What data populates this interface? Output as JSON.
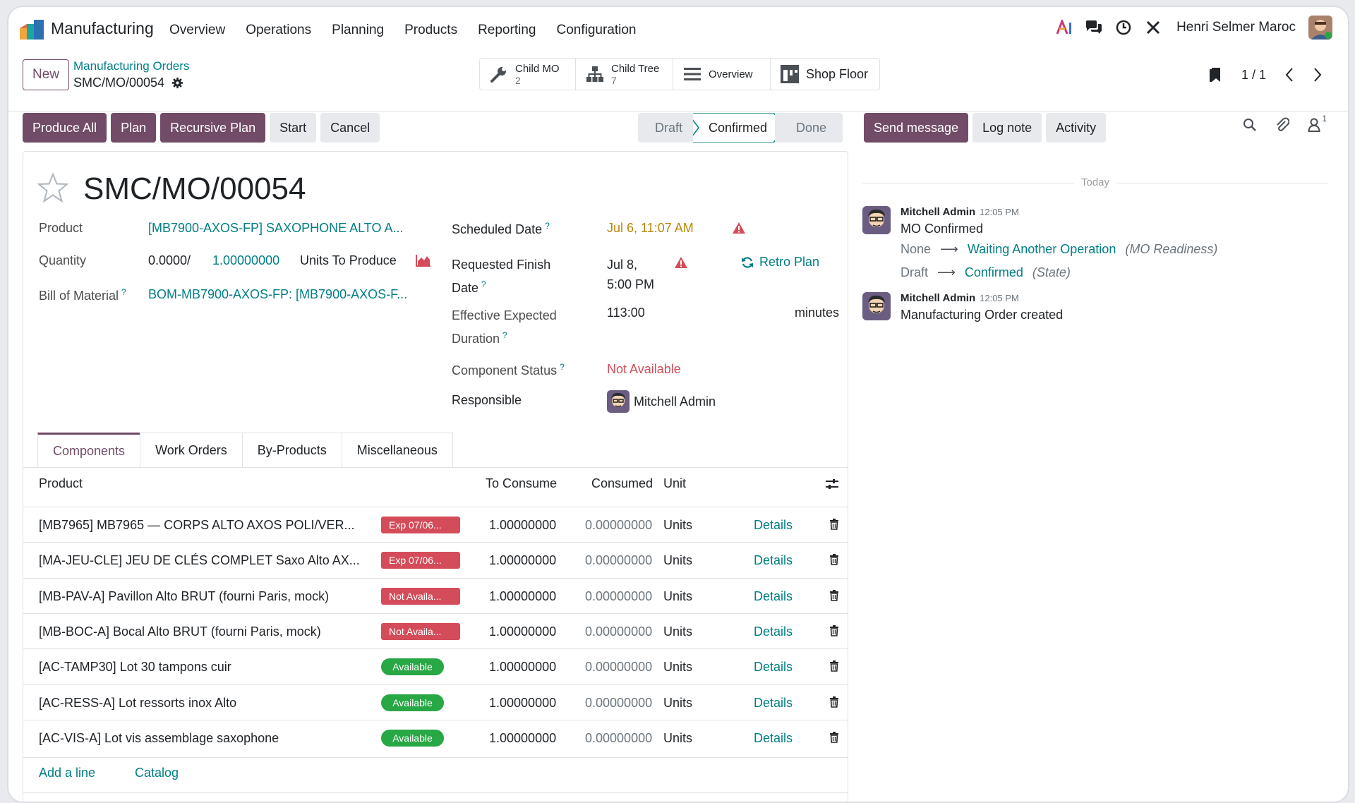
{
  "app": {
    "name": "Manufacturing"
  },
  "menu": [
    "Overview",
    "Operations",
    "Planning",
    "Products",
    "Reporting",
    "Configuration"
  ],
  "user": {
    "name": "Henri Selmer Maroc"
  },
  "breadcrumb": {
    "new_label": "New",
    "parent": "Manufacturing Orders",
    "current": "SMC/MO/00054"
  },
  "smart_buttons": {
    "child_mo": {
      "label": "Child MO",
      "count": "2"
    },
    "child_tree": {
      "label": "Child Tree",
      "count": "7"
    },
    "overview": {
      "label": "Overview"
    },
    "shop_floor": {
      "label": "Shop Floor"
    }
  },
  "pager": {
    "value": "1 / 1"
  },
  "actions": {
    "produce_all": "Produce All",
    "plan": "Plan",
    "recursive_plan": "Recursive Plan",
    "start": "Start",
    "cancel": "Cancel"
  },
  "statusbar": {
    "draft": "Draft",
    "confirmed": "Confirmed",
    "done": "Done",
    "active": "Confirmed"
  },
  "chatter_actions": {
    "send_message": "Send message",
    "log_note": "Log note",
    "activity": "Activity",
    "followers": "1"
  },
  "record": {
    "title": "SMC/MO/00054",
    "product_label": "Product",
    "product": "[MB7900-AXOS-FP] SAXOPHONE ALTO A...",
    "quantity_label": "Quantity",
    "qty_done": "0.0000/",
    "qty_total": "1.00000000",
    "qty_unit": "Units To Produce",
    "bom_label": "Bill of Material",
    "bom": "BOM-MB7900-AXOS-FP: [MB7900-AXOS-F...",
    "scheduled_label": "Scheduled Date",
    "scheduled": "Jul 6, 11:07 AM",
    "finish_label_1": "Requested Finish",
    "finish_label_2": "Date",
    "finish_1": "Jul 8,",
    "finish_2": "5:00 PM",
    "retro_plan": "Retro Plan",
    "duration_label_1": "Effective Expected",
    "duration_label_2": "Duration",
    "duration": "113:00",
    "duration_unit": "minutes",
    "component_status_label": "Component Status",
    "component_status": "Not Available",
    "responsible_label": "Responsible",
    "responsible": "Mitchell Admin",
    "help_mark": "?"
  },
  "tabs": [
    "Components",
    "Work Orders",
    "By-Products",
    "Miscellaneous"
  ],
  "table": {
    "headers": {
      "product": "Product",
      "to_consume": "To Consume",
      "consumed": "Consumed",
      "unit": "Unit"
    },
    "rows": [
      {
        "product": "[MB7965] MB7965 — CORPS ALTO AXOS POLI/VER...",
        "badge": "Exp 07/06...",
        "badge_color": "#d44c59",
        "to_consume": "1.00000000",
        "consumed": "0.00000000",
        "unit": "Units",
        "details": "Details"
      },
      {
        "product": "[MA-JEU-CLE] JEU DE CLÉS COMPLET Saxo Alto AX...",
        "badge": "Exp 07/06...",
        "badge_color": "#d44c59",
        "to_consume": "1.00000000",
        "consumed": "0.00000000",
        "unit": "Units",
        "details": "Details"
      },
      {
        "product": "[MB-PAV-A] Pavillon Alto BRUT (fourni Paris, mock)",
        "badge": "Not Availa...",
        "badge_color": "#d44c59",
        "to_consume": "1.00000000",
        "consumed": "0.00000000",
        "unit": "Units",
        "details": "Details"
      },
      {
        "product": "[MB-BOC-A] Bocal Alto BRUT (fourni Paris, mock)",
        "badge": "Not Availa...",
        "badge_color": "#d44c59",
        "to_consume": "1.00000000",
        "consumed": "0.00000000",
        "unit": "Units",
        "details": "Details"
      },
      {
        "product": "[AC-TAMP30] Lot 30 tampons cuir",
        "badge": "Available",
        "badge_color": "#28a745",
        "to_consume": "1.00000000",
        "consumed": "0.00000000",
        "unit": "Units",
        "details": "Details"
      },
      {
        "product": "[AC-RESS-A] Lot ressorts inox Alto",
        "badge": "Available",
        "badge_color": "#28a745",
        "to_consume": "1.00000000",
        "consumed": "0.00000000",
        "unit": "Units",
        "details": "Details"
      },
      {
        "product": "[AC-VIS-A] Lot vis assemblage saxophone",
        "badge": "Available",
        "badge_color": "#28a745",
        "to_consume": "1.00000000",
        "consumed": "0.00000000",
        "unit": "Units",
        "details": "Details"
      }
    ],
    "add_line": "Add a line",
    "catalog": "Catalog"
  },
  "chatter": {
    "today": "Today",
    "messages": [
      {
        "author": "Mitchell Admin",
        "time": "12:05 PM",
        "body": "MO Confirmed",
        "tracking": [
          {
            "old": "None",
            "new": "Waiting Another Operation",
            "field": "(MO Readiness)"
          },
          {
            "old": "Draft",
            "new": "Confirmed",
            "field": "(State)"
          }
        ]
      },
      {
        "author": "Mitchell Admin",
        "time": "12:05 PM",
        "body": "Manufacturing Order created"
      }
    ]
  },
  "colors": {
    "primary": "#714b67",
    "link": "#017e84",
    "danger": "#d44c59",
    "success": "#28a745",
    "warning": "#b8860b"
  }
}
